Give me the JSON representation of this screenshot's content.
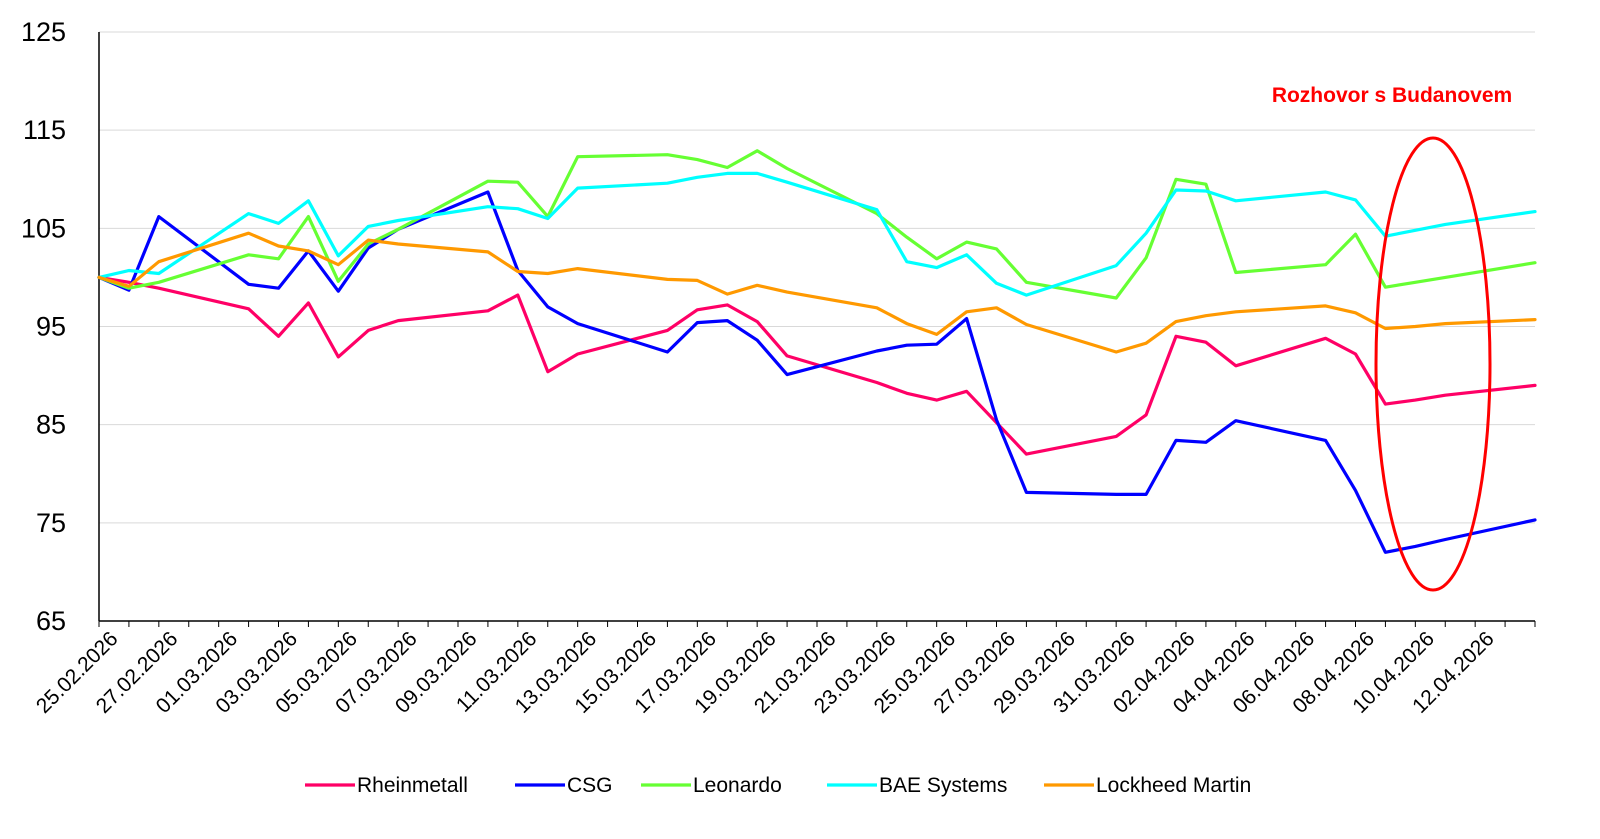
{
  "chart_data": {
    "type": "line",
    "title": "",
    "xlabel": "",
    "ylabel": "",
    "ylim": [
      65,
      125
    ],
    "yticks": [
      65,
      75,
      85,
      95,
      105,
      115,
      125
    ],
    "grid": "horizontal",
    "legend": "bottom",
    "x_start": "2026-02-25",
    "x_end": "2026-04-13",
    "xtick_labels": [
      "25.02.2026",
      "27.02.2026",
      "01.03.2026",
      "03.03.2026",
      "05.03.2026",
      "07.03.2026",
      "09.03.2026",
      "11.03.2026",
      "13.03.2026",
      "15.03.2026",
      "17.03.2026",
      "19.03.2026",
      "21.03.2026",
      "23.03.2026",
      "25.03.2026",
      "27.03.2026",
      "29.03.2026",
      "31.03.2026",
      "02.04.2026",
      "04.04.2026",
      "06.04.2026",
      "08.04.2026",
      "10.04.2026",
      "12.04.2026"
    ],
    "x": [
      0,
      1,
      2,
      5,
      6,
      7,
      8,
      9,
      10,
      13,
      14,
      15,
      16,
      19,
      20,
      21,
      22,
      23,
      26,
      27,
      28,
      29,
      30,
      31,
      34,
      35,
      36,
      37,
      38,
      41,
      42,
      43,
      44,
      45,
      48
    ],
    "series": [
      {
        "name": "Rheinmetall",
        "color": "#ff0066",
        "values": [
          100,
          99.5,
          98.9,
          96.8,
          94.0,
          97.4,
          91.9,
          94.6,
          95.6,
          96.6,
          98.2,
          90.4,
          92.2,
          94.6,
          96.7,
          97.2,
          95.5,
          92.0,
          89.3,
          88.2,
          87.5,
          88.4,
          85.2,
          82.0,
          83.8,
          86.0,
          94.0,
          93.4,
          91.0,
          93.8,
          92.2,
          87.1,
          87.5,
          88.0,
          89.0
        ]
      },
      {
        "name": "CSG",
        "color": "#0000ff",
        "values": [
          100,
          98.7,
          106.2,
          99.3,
          98.9,
          102.7,
          98.6,
          103.0,
          104.9,
          108.7,
          100.7,
          97.0,
          95.3,
          92.4,
          95.4,
          95.6,
          93.6,
          90.1,
          92.5,
          93.1,
          93.2,
          95.8,
          85.5,
          78.1,
          77.9,
          77.9,
          83.4,
          83.2,
          85.4,
          83.4,
          78.3,
          72.0,
          72.6,
          73.3,
          75.3
        ]
      },
      {
        "name": "Leonardo",
        "color": "#66ff33",
        "values": [
          100,
          98.9,
          99.5,
          102.3,
          101.9,
          106.2,
          99.6,
          103.4,
          104.9,
          109.8,
          109.7,
          106.2,
          112.3,
          112.5,
          112.0,
          111.2,
          112.9,
          111.1,
          106.5,
          104.1,
          101.9,
          103.6,
          102.9,
          99.5,
          97.9,
          102.0,
          110.0,
          109.5,
          100.5,
          101.3,
          104.4,
          99.0,
          99.5,
          100.0,
          101.5
        ]
      },
      {
        "name": "BAE Systems",
        "color": "#00ffff",
        "values": [
          100,
          100.7,
          100.4,
          106.5,
          105.5,
          107.8,
          102.2,
          105.2,
          105.8,
          107.2,
          107.0,
          106.0,
          109.1,
          109.6,
          110.2,
          110.6,
          110.6,
          109.7,
          106.9,
          101.6,
          101.0,
          102.3,
          99.4,
          98.2,
          101.2,
          104.5,
          108.9,
          108.8,
          107.8,
          108.7,
          107.9,
          104.2,
          104.8,
          105.4,
          106.7
        ]
      },
      {
        "name": "Lockheed Martin",
        "color": "#ff9900",
        "values": [
          100,
          99.1,
          101.6,
          104.5,
          103.2,
          102.7,
          101.3,
          103.8,
          103.4,
          102.6,
          100.6,
          100.4,
          100.9,
          99.8,
          99.7,
          98.3,
          99.2,
          98.5,
          96.9,
          95.3,
          94.2,
          96.5,
          96.9,
          95.2,
          92.4,
          93.3,
          95.5,
          96.1,
          96.5,
          97.1,
          96.4,
          94.8,
          95.0,
          95.3,
          95.7
        ]
      }
    ],
    "annotations": [
      {
        "text": "Rozhovor s Budanovem",
        "color": "#ff0000"
      }
    ]
  }
}
